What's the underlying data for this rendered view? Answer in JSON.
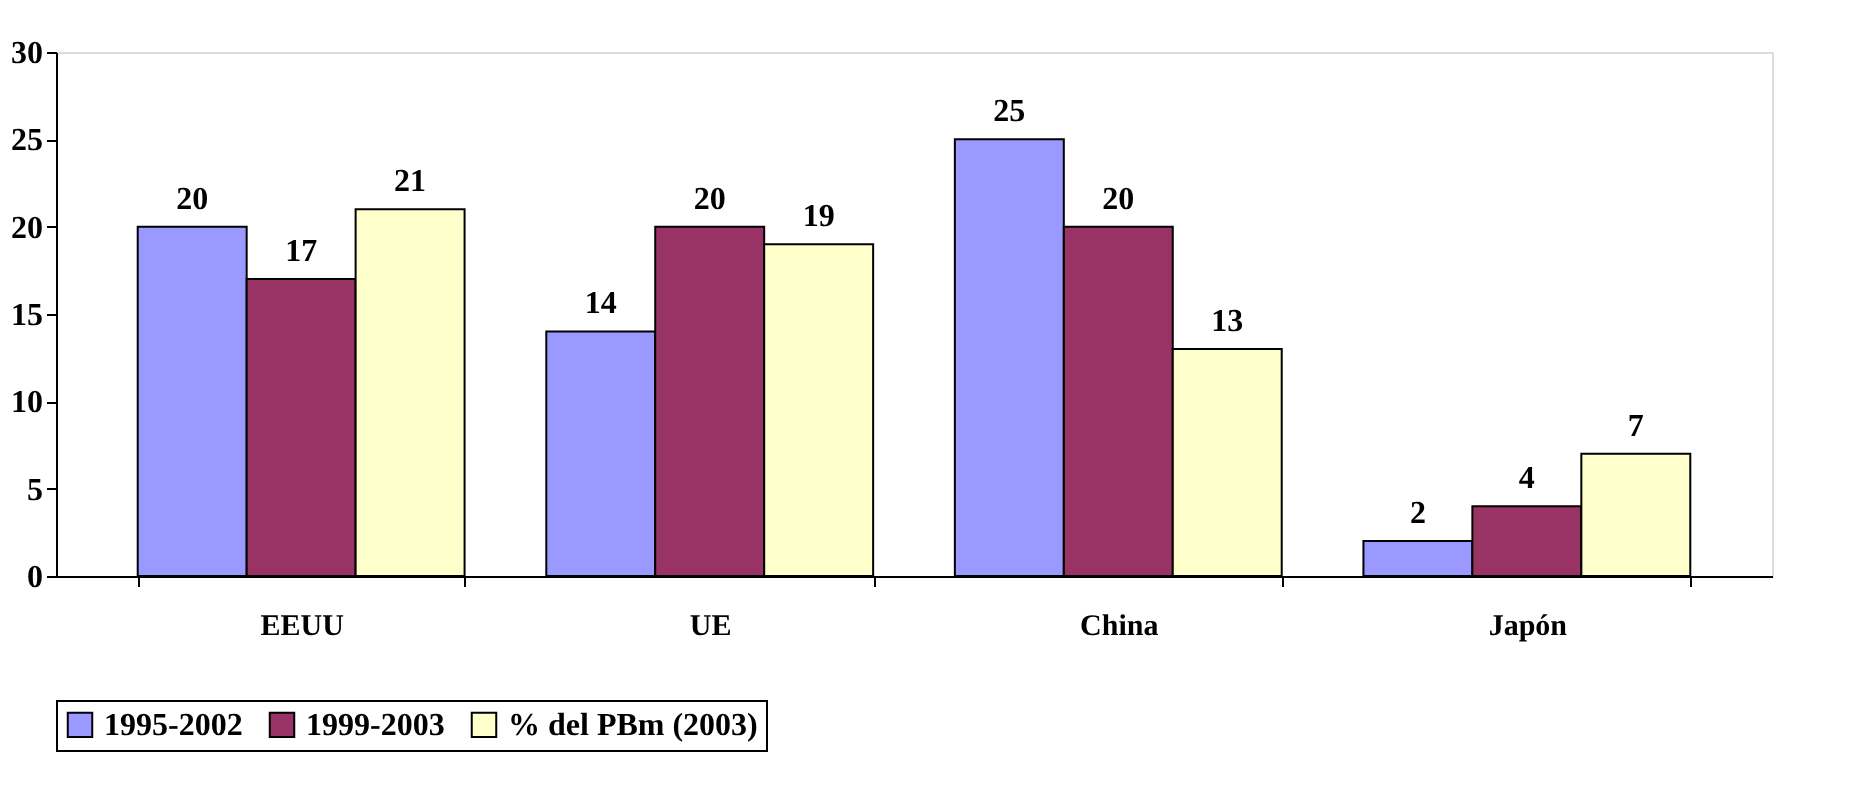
{
  "chart_data": {
    "type": "bar",
    "categories": [
      "EEUU",
      "UE",
      "China",
      "Japón"
    ],
    "series": [
      {
        "name": "1995-2002",
        "color": "#9999ff",
        "values": [
          20,
          14,
          25,
          2
        ]
      },
      {
        "name": "1999-2003",
        "color": "#993366",
        "values": [
          17,
          20,
          20,
          4
        ]
      },
      {
        "name": "% del PBm (2003)",
        "color": "#ffffcc",
        "values": [
          21,
          19,
          13,
          7
        ]
      }
    ],
    "ylim": [
      0,
      30
    ],
    "yticks": [
      0,
      5,
      10,
      15,
      20,
      25,
      30
    ],
    "data_labels": true,
    "grid": false,
    "legend": "bottom"
  }
}
